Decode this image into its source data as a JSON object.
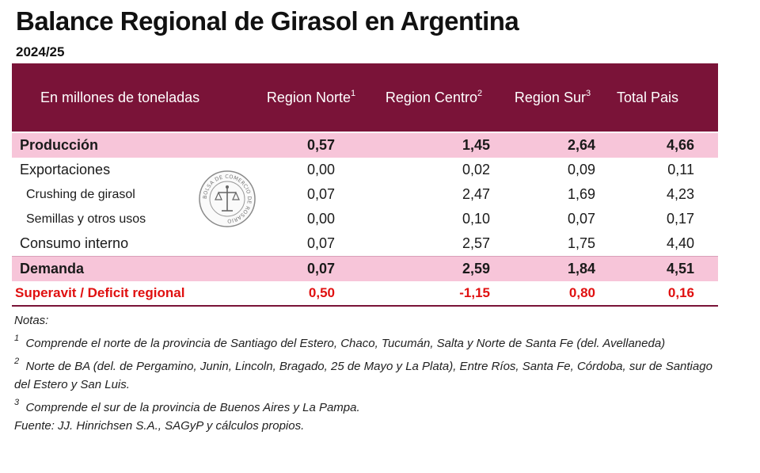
{
  "title": "Balance Regional de Girasol en Argentina",
  "subtitle": "2024/25",
  "table": {
    "header": {
      "label": "En millones de toneladas",
      "columns": [
        {
          "name": "Region Norte",
          "sup": "1"
        },
        {
          "name": "Region Centro",
          "sup": "2"
        },
        {
          "name": "Region Sur",
          "sup": "3"
        },
        {
          "name": "Total Pais",
          "sup": ""
        }
      ]
    },
    "rows": [
      {
        "label": "Producción",
        "values": [
          "0,57",
          "1,45",
          "2,64",
          "4,66"
        ]
      },
      {
        "label": "Exportaciones",
        "values": [
          "0,00",
          "0,02",
          "0,09",
          "0,11"
        ]
      },
      {
        "label": "Crushing de girasol",
        "values": [
          "0,07",
          "2,47",
          "1,69",
          "4,23"
        ]
      },
      {
        "label": "Semillas y otros usos",
        "values": [
          "0,00",
          "0,10",
          "0,07",
          "0,17"
        ]
      },
      {
        "label": "Consumo interno",
        "values": [
          "0,07",
          "2,57",
          "1,75",
          "4,40"
        ]
      },
      {
        "label": "Demanda",
        "values": [
          "0,07",
          "2,59",
          "1,84",
          "4,51"
        ]
      },
      {
        "label": "Superavit / Deficit regional",
        "values": [
          "0,50",
          "-1,15",
          "0,80",
          "0,16"
        ]
      }
    ]
  },
  "notes": {
    "heading": "Notas:",
    "items": [
      {
        "num": "1",
        "text": "Comprende el norte de la provincia de Santiago del Estero, Chaco, Tucumán, Salta y Norte de Santa Fe (del. Avellaneda)"
      },
      {
        "num": "2",
        "text": "Norte de BA (del. de Pergamino, Junin, Lincoln, Bragado, 25 de Mayo y La Plata), Entre Ríos, Santa Fe, Córdoba, sur de Santiago del Estero y San Luis."
      },
      {
        "num": "3",
        "text": "Comprende el sur de la provincia de Buenos Aires y La Pampa."
      }
    ],
    "source": "Fuente: JJ. Hinrichsen S.A., SAGyP y cálculos propios."
  },
  "colors": {
    "header_bg": "#7a1338",
    "highlight_bg": "#f7c5d9",
    "deficit_text": "#e01010"
  },
  "seal": {
    "icon": "bolsa-de-comercio-seal-icon",
    "text": "BOLSA DE COMERCIO DE ROSARIO"
  }
}
